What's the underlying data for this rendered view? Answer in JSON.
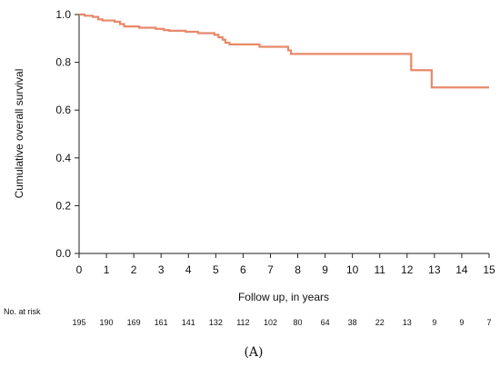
{
  "chart_data": {
    "type": "line",
    "xlabel": "Follow up, in years",
    "ylabel": "Cumulative overall survival",
    "xlim": [
      0,
      15
    ],
    "ylim": [
      0,
      1.0
    ],
    "x_ticks": [
      0,
      1,
      2,
      3,
      4,
      5,
      6,
      7,
      8,
      9,
      10,
      11,
      12,
      13,
      14,
      15
    ],
    "y_ticks": [
      "0.0",
      "0.2",
      "0.4",
      "0.6",
      "0.8",
      "1.0"
    ],
    "grid": false,
    "legend": "none",
    "series": [
      {
        "color": "#E8896A",
        "step": true,
        "x": [
          0,
          0.2,
          0.5,
          0.7,
          0.85,
          1.3,
          1.5,
          1.65,
          2.2,
          2.8,
          3.1,
          3.3,
          3.9,
          4.35,
          4.95,
          5.1,
          5.25,
          5.35,
          5.5,
          6.6,
          7.65,
          7.75,
          12.15,
          12.9,
          15
        ],
        "y": [
          1.0,
          0.995,
          0.99,
          0.98,
          0.975,
          0.97,
          0.96,
          0.95,
          0.945,
          0.94,
          0.935,
          0.932,
          0.928,
          0.922,
          0.915,
          0.905,
          0.895,
          0.882,
          0.875,
          0.865,
          0.85,
          0.835,
          0.767,
          0.695,
          0.695
        ]
      }
    ],
    "risk_table": {
      "label": "No. at risk",
      "counts": [
        "195",
        "190",
        "169",
        "161",
        "141",
        "132",
        "112",
        "102",
        "80",
        "64",
        "38",
        "22",
        "13",
        "9",
        "9",
        "7"
      ]
    },
    "panel_label": "(A)"
  }
}
